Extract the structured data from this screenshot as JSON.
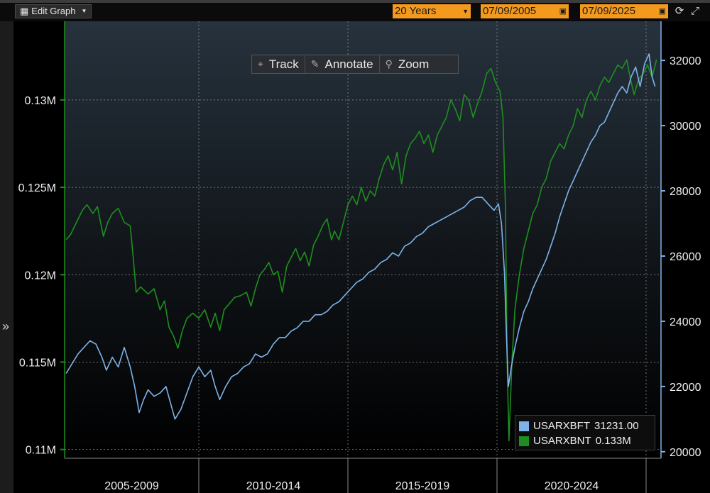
{
  "toolbar": {
    "edit_graph_label": "Edit Graph",
    "period": "20 Years",
    "start_date": "07/09/2005",
    "end_date": "07/09/2025"
  },
  "chart_toolbar": {
    "track": "Track",
    "annotate": "Annotate",
    "zoom": "Zoom"
  },
  "legend": [
    {
      "name": "USARXBFT",
      "value": "31231.00",
      "color": "#7fb2e8"
    },
    {
      "name": "USARXBNT",
      "value": "0.133M",
      "color": "#1e8f1e"
    }
  ],
  "chart_data": {
    "type": "line",
    "x_period_labels": [
      "2005-2009",
      "2010-2014",
      "2015-2019",
      "2020-2024"
    ],
    "x_range": [
      2005.5,
      2025.5
    ],
    "left_axis": {
      "series": "USARXBNT",
      "range": [
        109500,
        134500
      ],
      "ticks": [
        110000,
        115000,
        120000,
        125000,
        130000
      ],
      "tick_labels": [
        "0.11M",
        "0.115M",
        "0.12M",
        "0.125M",
        "0.13M"
      ],
      "color": "#1e8f1e"
    },
    "right_axis": {
      "series": "USARXBFT",
      "range": [
        19800,
        33200
      ],
      "ticks": [
        20000,
        22000,
        24000,
        26000,
        28000,
        30000,
        32000
      ],
      "tick_labels": [
        "20000",
        "22000",
        "24000",
        "26000",
        "28000",
        "30000",
        "32000"
      ],
      "color": "#7fb2e8"
    },
    "series": [
      {
        "name": "USARXBNT",
        "axis": "left",
        "color": "#1e8f1e",
        "points": [
          [
            2005.55,
            122.0
          ],
          [
            2005.7,
            122.3
          ],
          [
            2005.9,
            123.0
          ],
          [
            2006.1,
            123.7
          ],
          [
            2006.25,
            124.0
          ],
          [
            2006.45,
            123.5
          ],
          [
            2006.6,
            123.9
          ],
          [
            2006.8,
            122.2
          ],
          [
            2006.95,
            123.0
          ],
          [
            2007.1,
            123.5
          ],
          [
            2007.3,
            123.8
          ],
          [
            2007.5,
            123.0
          ],
          [
            2007.7,
            122.8
          ],
          [
            2007.8,
            121.0
          ],
          [
            2007.9,
            119.0
          ],
          [
            2008.05,
            119.3
          ],
          [
            2008.3,
            118.9
          ],
          [
            2008.5,
            119.2
          ],
          [
            2008.7,
            118.0
          ],
          [
            2008.85,
            118.5
          ],
          [
            2009.0,
            117.0
          ],
          [
            2009.15,
            116.5
          ],
          [
            2009.3,
            115.8
          ],
          [
            2009.45,
            116.8
          ],
          [
            2009.6,
            117.5
          ],
          [
            2009.8,
            117.8
          ],
          [
            2010.0,
            117.5
          ],
          [
            2010.2,
            118.0
          ],
          [
            2010.4,
            117.0
          ],
          [
            2010.55,
            117.8
          ],
          [
            2010.7,
            116.8
          ],
          [
            2010.85,
            118.0
          ],
          [
            2011.0,
            118.3
          ],
          [
            2011.2,
            118.7
          ],
          [
            2011.4,
            118.8
          ],
          [
            2011.6,
            119.0
          ],
          [
            2011.75,
            118.2
          ],
          [
            2011.9,
            119.2
          ],
          [
            2012.05,
            120.0
          ],
          [
            2012.2,
            120.3
          ],
          [
            2012.35,
            120.7
          ],
          [
            2012.5,
            120.0
          ],
          [
            2012.65,
            120.2
          ],
          [
            2012.8,
            119.0
          ],
          [
            2012.95,
            120.5
          ],
          [
            2013.1,
            121.0
          ],
          [
            2013.25,
            121.5
          ],
          [
            2013.4,
            120.8
          ],
          [
            2013.55,
            121.3
          ],
          [
            2013.7,
            120.5
          ],
          [
            2013.85,
            121.7
          ],
          [
            2014.0,
            122.2
          ],
          [
            2014.15,
            122.8
          ],
          [
            2014.3,
            123.2
          ],
          [
            2014.45,
            122.0
          ],
          [
            2014.55,
            122.5
          ],
          [
            2014.7,
            122.0
          ],
          [
            2014.85,
            123.0
          ],
          [
            2015.0,
            124.0
          ],
          [
            2015.15,
            124.5
          ],
          [
            2015.3,
            124.0
          ],
          [
            2015.45,
            125.0
          ],
          [
            2015.6,
            124.2
          ],
          [
            2015.75,
            124.8
          ],
          [
            2015.9,
            124.5
          ],
          [
            2016.05,
            125.5
          ],
          [
            2016.2,
            126.3
          ],
          [
            2016.35,
            126.8
          ],
          [
            2016.5,
            126.0
          ],
          [
            2016.65,
            127.0
          ],
          [
            2016.8,
            125.2
          ],
          [
            2016.95,
            126.8
          ],
          [
            2017.1,
            127.5
          ],
          [
            2017.25,
            127.8
          ],
          [
            2017.4,
            128.2
          ],
          [
            2017.55,
            127.5
          ],
          [
            2017.7,
            128.0
          ],
          [
            2017.85,
            127.0
          ],
          [
            2018.0,
            128.0
          ],
          [
            2018.15,
            128.5
          ],
          [
            2018.3,
            129.0
          ],
          [
            2018.45,
            130.0
          ],
          [
            2018.6,
            129.5
          ],
          [
            2018.75,
            128.8
          ],
          [
            2018.9,
            130.3
          ],
          [
            2019.05,
            130.0
          ],
          [
            2019.2,
            129.0
          ],
          [
            2019.35,
            129.8
          ],
          [
            2019.5,
            130.5
          ],
          [
            2019.65,
            131.5
          ],
          [
            2019.8,
            131.8
          ],
          [
            2019.95,
            131.0
          ],
          [
            2020.1,
            130.5
          ],
          [
            2020.2,
            129.0
          ],
          [
            2020.28,
            124.0
          ],
          [
            2020.34,
            115.0
          ],
          [
            2020.4,
            110.5
          ],
          [
            2020.5,
            115.0
          ],
          [
            2020.6,
            118.0
          ],
          [
            2020.75,
            120.0
          ],
          [
            2020.9,
            121.5
          ],
          [
            2021.05,
            122.5
          ],
          [
            2021.2,
            123.5
          ],
          [
            2021.35,
            124.0
          ],
          [
            2021.5,
            125.0
          ],
          [
            2021.65,
            125.5
          ],
          [
            2021.8,
            126.5
          ],
          [
            2021.95,
            127.0
          ],
          [
            2022.1,
            127.5
          ],
          [
            2022.25,
            127.2
          ],
          [
            2022.4,
            128.0
          ],
          [
            2022.55,
            128.5
          ],
          [
            2022.7,
            129.5
          ],
          [
            2022.85,
            129.0
          ],
          [
            2023.0,
            130.0
          ],
          [
            2023.15,
            130.5
          ],
          [
            2023.3,
            130.0
          ],
          [
            2023.45,
            130.8
          ],
          [
            2023.6,
            131.3
          ],
          [
            2023.75,
            131.0
          ],
          [
            2023.9,
            131.5
          ],
          [
            2024.05,
            132.0
          ],
          [
            2024.2,
            131.8
          ],
          [
            2024.35,
            132.3
          ],
          [
            2024.5,
            131.0
          ],
          [
            2024.6,
            130.3
          ],
          [
            2024.75,
            131.2
          ],
          [
            2024.9,
            131.5
          ],
          [
            2025.05,
            132.0
          ],
          [
            2025.2,
            131.3
          ],
          [
            2025.35,
            132.3
          ]
        ]
      },
      {
        "name": "USARXBFT",
        "axis": "right",
        "color": "#7fb2e8",
        "points": [
          [
            2005.55,
            22.4
          ],
          [
            2005.75,
            22.7
          ],
          [
            2005.95,
            23.0
          ],
          [
            2006.15,
            23.2
          ],
          [
            2006.35,
            23.4
          ],
          [
            2006.55,
            23.3
          ],
          [
            2006.75,
            22.9
          ],
          [
            2006.9,
            22.5
          ],
          [
            2007.1,
            22.9
          ],
          [
            2007.3,
            22.6
          ],
          [
            2007.5,
            23.2
          ],
          [
            2007.7,
            22.6
          ],
          [
            2007.85,
            22.0
          ],
          [
            2008.0,
            21.2
          ],
          [
            2008.15,
            21.6
          ],
          [
            2008.3,
            21.9
          ],
          [
            2008.5,
            21.7
          ],
          [
            2008.7,
            21.8
          ],
          [
            2008.9,
            22.0
          ],
          [
            2009.05,
            21.5
          ],
          [
            2009.2,
            21.0
          ],
          [
            2009.4,
            21.3
          ],
          [
            2009.6,
            21.8
          ],
          [
            2009.8,
            22.3
          ],
          [
            2010.0,
            22.6
          ],
          [
            2010.2,
            22.3
          ],
          [
            2010.4,
            22.5
          ],
          [
            2010.55,
            22.0
          ],
          [
            2010.7,
            21.6
          ],
          [
            2010.9,
            22.0
          ],
          [
            2011.1,
            22.3
          ],
          [
            2011.3,
            22.4
          ],
          [
            2011.5,
            22.6
          ],
          [
            2011.7,
            22.7
          ],
          [
            2011.9,
            23.0
          ],
          [
            2012.1,
            22.9
          ],
          [
            2012.3,
            23.0
          ],
          [
            2012.5,
            23.3
          ],
          [
            2012.7,
            23.5
          ],
          [
            2012.9,
            23.5
          ],
          [
            2013.1,
            23.7
          ],
          [
            2013.3,
            23.8
          ],
          [
            2013.5,
            24.0
          ],
          [
            2013.7,
            24.0
          ],
          [
            2013.9,
            24.2
          ],
          [
            2014.1,
            24.2
          ],
          [
            2014.3,
            24.3
          ],
          [
            2014.5,
            24.5
          ],
          [
            2014.7,
            24.6
          ],
          [
            2014.9,
            24.8
          ],
          [
            2015.1,
            25.0
          ],
          [
            2015.3,
            25.2
          ],
          [
            2015.5,
            25.3
          ],
          [
            2015.7,
            25.5
          ],
          [
            2015.9,
            25.6
          ],
          [
            2016.1,
            25.8
          ],
          [
            2016.3,
            25.9
          ],
          [
            2016.5,
            26.1
          ],
          [
            2016.7,
            26.0
          ],
          [
            2016.9,
            26.3
          ],
          [
            2017.1,
            26.4
          ],
          [
            2017.3,
            26.6
          ],
          [
            2017.5,
            26.7
          ],
          [
            2017.7,
            26.9
          ],
          [
            2017.9,
            27.0
          ],
          [
            2018.1,
            27.1
          ],
          [
            2018.3,
            27.2
          ],
          [
            2018.5,
            27.3
          ],
          [
            2018.7,
            27.4
          ],
          [
            2018.9,
            27.5
          ],
          [
            2019.1,
            27.7
          ],
          [
            2019.3,
            27.8
          ],
          [
            2019.5,
            27.8
          ],
          [
            2019.7,
            27.6
          ],
          [
            2019.9,
            27.4
          ],
          [
            2020.05,
            27.6
          ],
          [
            2020.15,
            27.0
          ],
          [
            2020.25,
            25.5
          ],
          [
            2020.32,
            23.5
          ],
          [
            2020.38,
            22.0
          ],
          [
            2020.48,
            22.6
          ],
          [
            2020.6,
            23.2
          ],
          [
            2020.75,
            23.8
          ],
          [
            2020.9,
            24.3
          ],
          [
            2021.05,
            24.6
          ],
          [
            2021.2,
            25.0
          ],
          [
            2021.35,
            25.3
          ],
          [
            2021.5,
            25.6
          ],
          [
            2021.65,
            25.9
          ],
          [
            2021.8,
            26.3
          ],
          [
            2021.95,
            26.7
          ],
          [
            2022.1,
            27.2
          ],
          [
            2022.25,
            27.6
          ],
          [
            2022.4,
            28.0
          ],
          [
            2022.55,
            28.3
          ],
          [
            2022.7,
            28.6
          ],
          [
            2022.85,
            28.9
          ],
          [
            2023.0,
            29.2
          ],
          [
            2023.15,
            29.5
          ],
          [
            2023.3,
            29.7
          ],
          [
            2023.45,
            30.0
          ],
          [
            2023.6,
            30.1
          ],
          [
            2023.75,
            30.4
          ],
          [
            2023.9,
            30.7
          ],
          [
            2024.05,
            31.0
          ],
          [
            2024.2,
            31.2
          ],
          [
            2024.35,
            31.0
          ],
          [
            2024.5,
            31.5
          ],
          [
            2024.65,
            31.8
          ],
          [
            2024.8,
            31.2
          ],
          [
            2024.95,
            31.9
          ],
          [
            2025.1,
            32.2
          ],
          [
            2025.2,
            31.5
          ],
          [
            2025.3,
            31.2
          ]
        ]
      }
    ]
  }
}
